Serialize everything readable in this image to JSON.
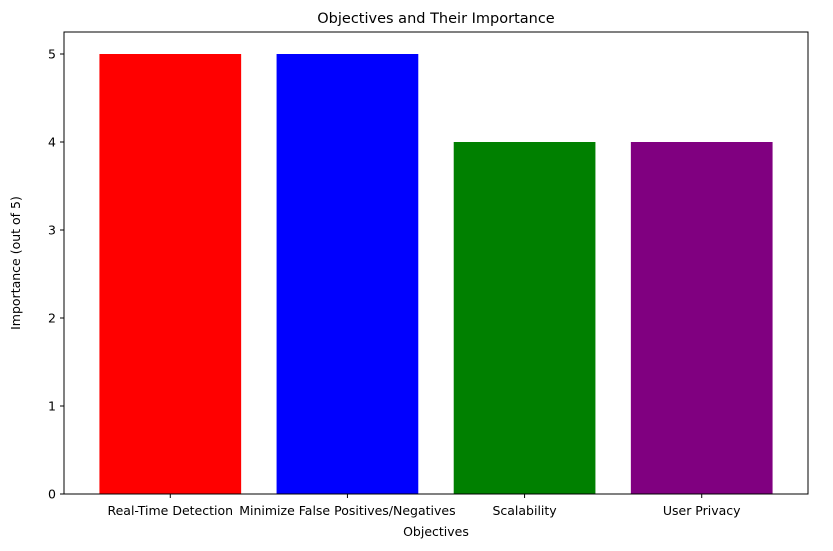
{
  "chart_data": {
    "type": "bar",
    "title": "Objectives and Their Importance",
    "xlabel": "Objectives",
    "ylabel": "Importance (out of 5)",
    "categories": [
      "Real-Time Detection",
      "Minimize False Positives/Negatives",
      "Scalability",
      "User Privacy"
    ],
    "values": [
      5,
      5,
      4,
      4
    ],
    "colors": [
      "#ff0000",
      "#0000ff",
      "#008000",
      "#800080"
    ],
    "ylim": [
      0,
      5.25
    ],
    "yticks": [
      0,
      1,
      2,
      3,
      4,
      5
    ],
    "ytick_labels": [
      "0",
      "1",
      "2",
      "3",
      "4",
      "5"
    ],
    "grid": false,
    "legend": "none"
  }
}
